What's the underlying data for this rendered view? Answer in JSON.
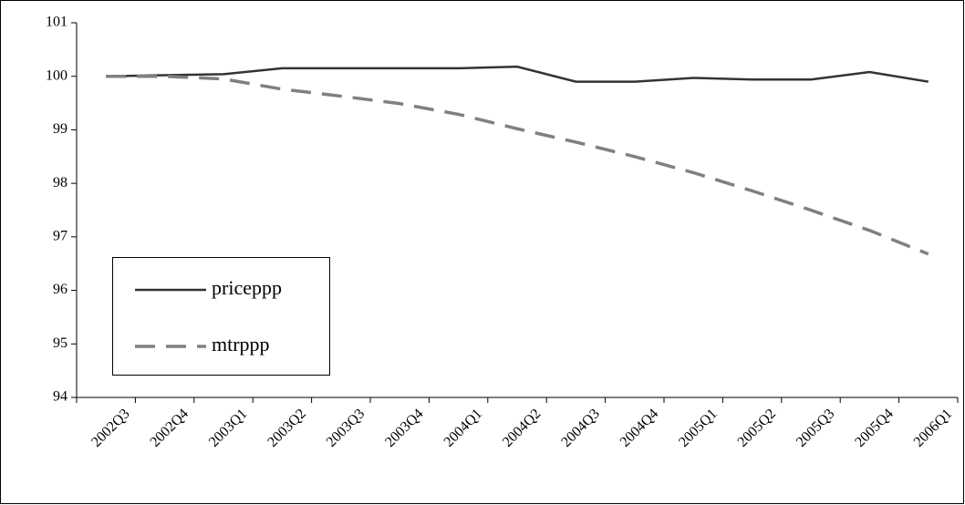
{
  "chart_data": {
    "type": "line",
    "categories": [
      "2002Q3",
      "2002Q4",
      "2003Q1",
      "2003Q2",
      "2003Q3",
      "2003Q4",
      "2004Q1",
      "2004Q2",
      "2004Q3",
      "2004Q4",
      "2005Q1",
      "2005Q2",
      "2005Q3",
      "2005Q4",
      "2006Q1"
    ],
    "series": [
      {
        "name": "priceppp",
        "color": "#333333",
        "dash": "solid",
        "values": [
          100,
          100.02,
          100.04,
          100.15,
          100.15,
          100.15,
          100.15,
          100.18,
          99.9,
          99.9,
          99.97,
          99.94,
          99.94,
          100.08,
          99.9
        ]
      },
      {
        "name": "mtrppp",
        "color": "#808080",
        "dash": "dashed",
        "values": [
          100,
          100,
          99.95,
          99.76,
          99.63,
          99.49,
          99.29,
          99.02,
          98.77,
          98.5,
          98.2,
          97.86,
          97.5,
          97.12,
          96.68
        ]
      }
    ],
    "ylim": [
      94,
      101
    ],
    "yticks": [
      94,
      95,
      96,
      97,
      98,
      99,
      100,
      101
    ],
    "grid": false,
    "legend": "lower-left"
  }
}
